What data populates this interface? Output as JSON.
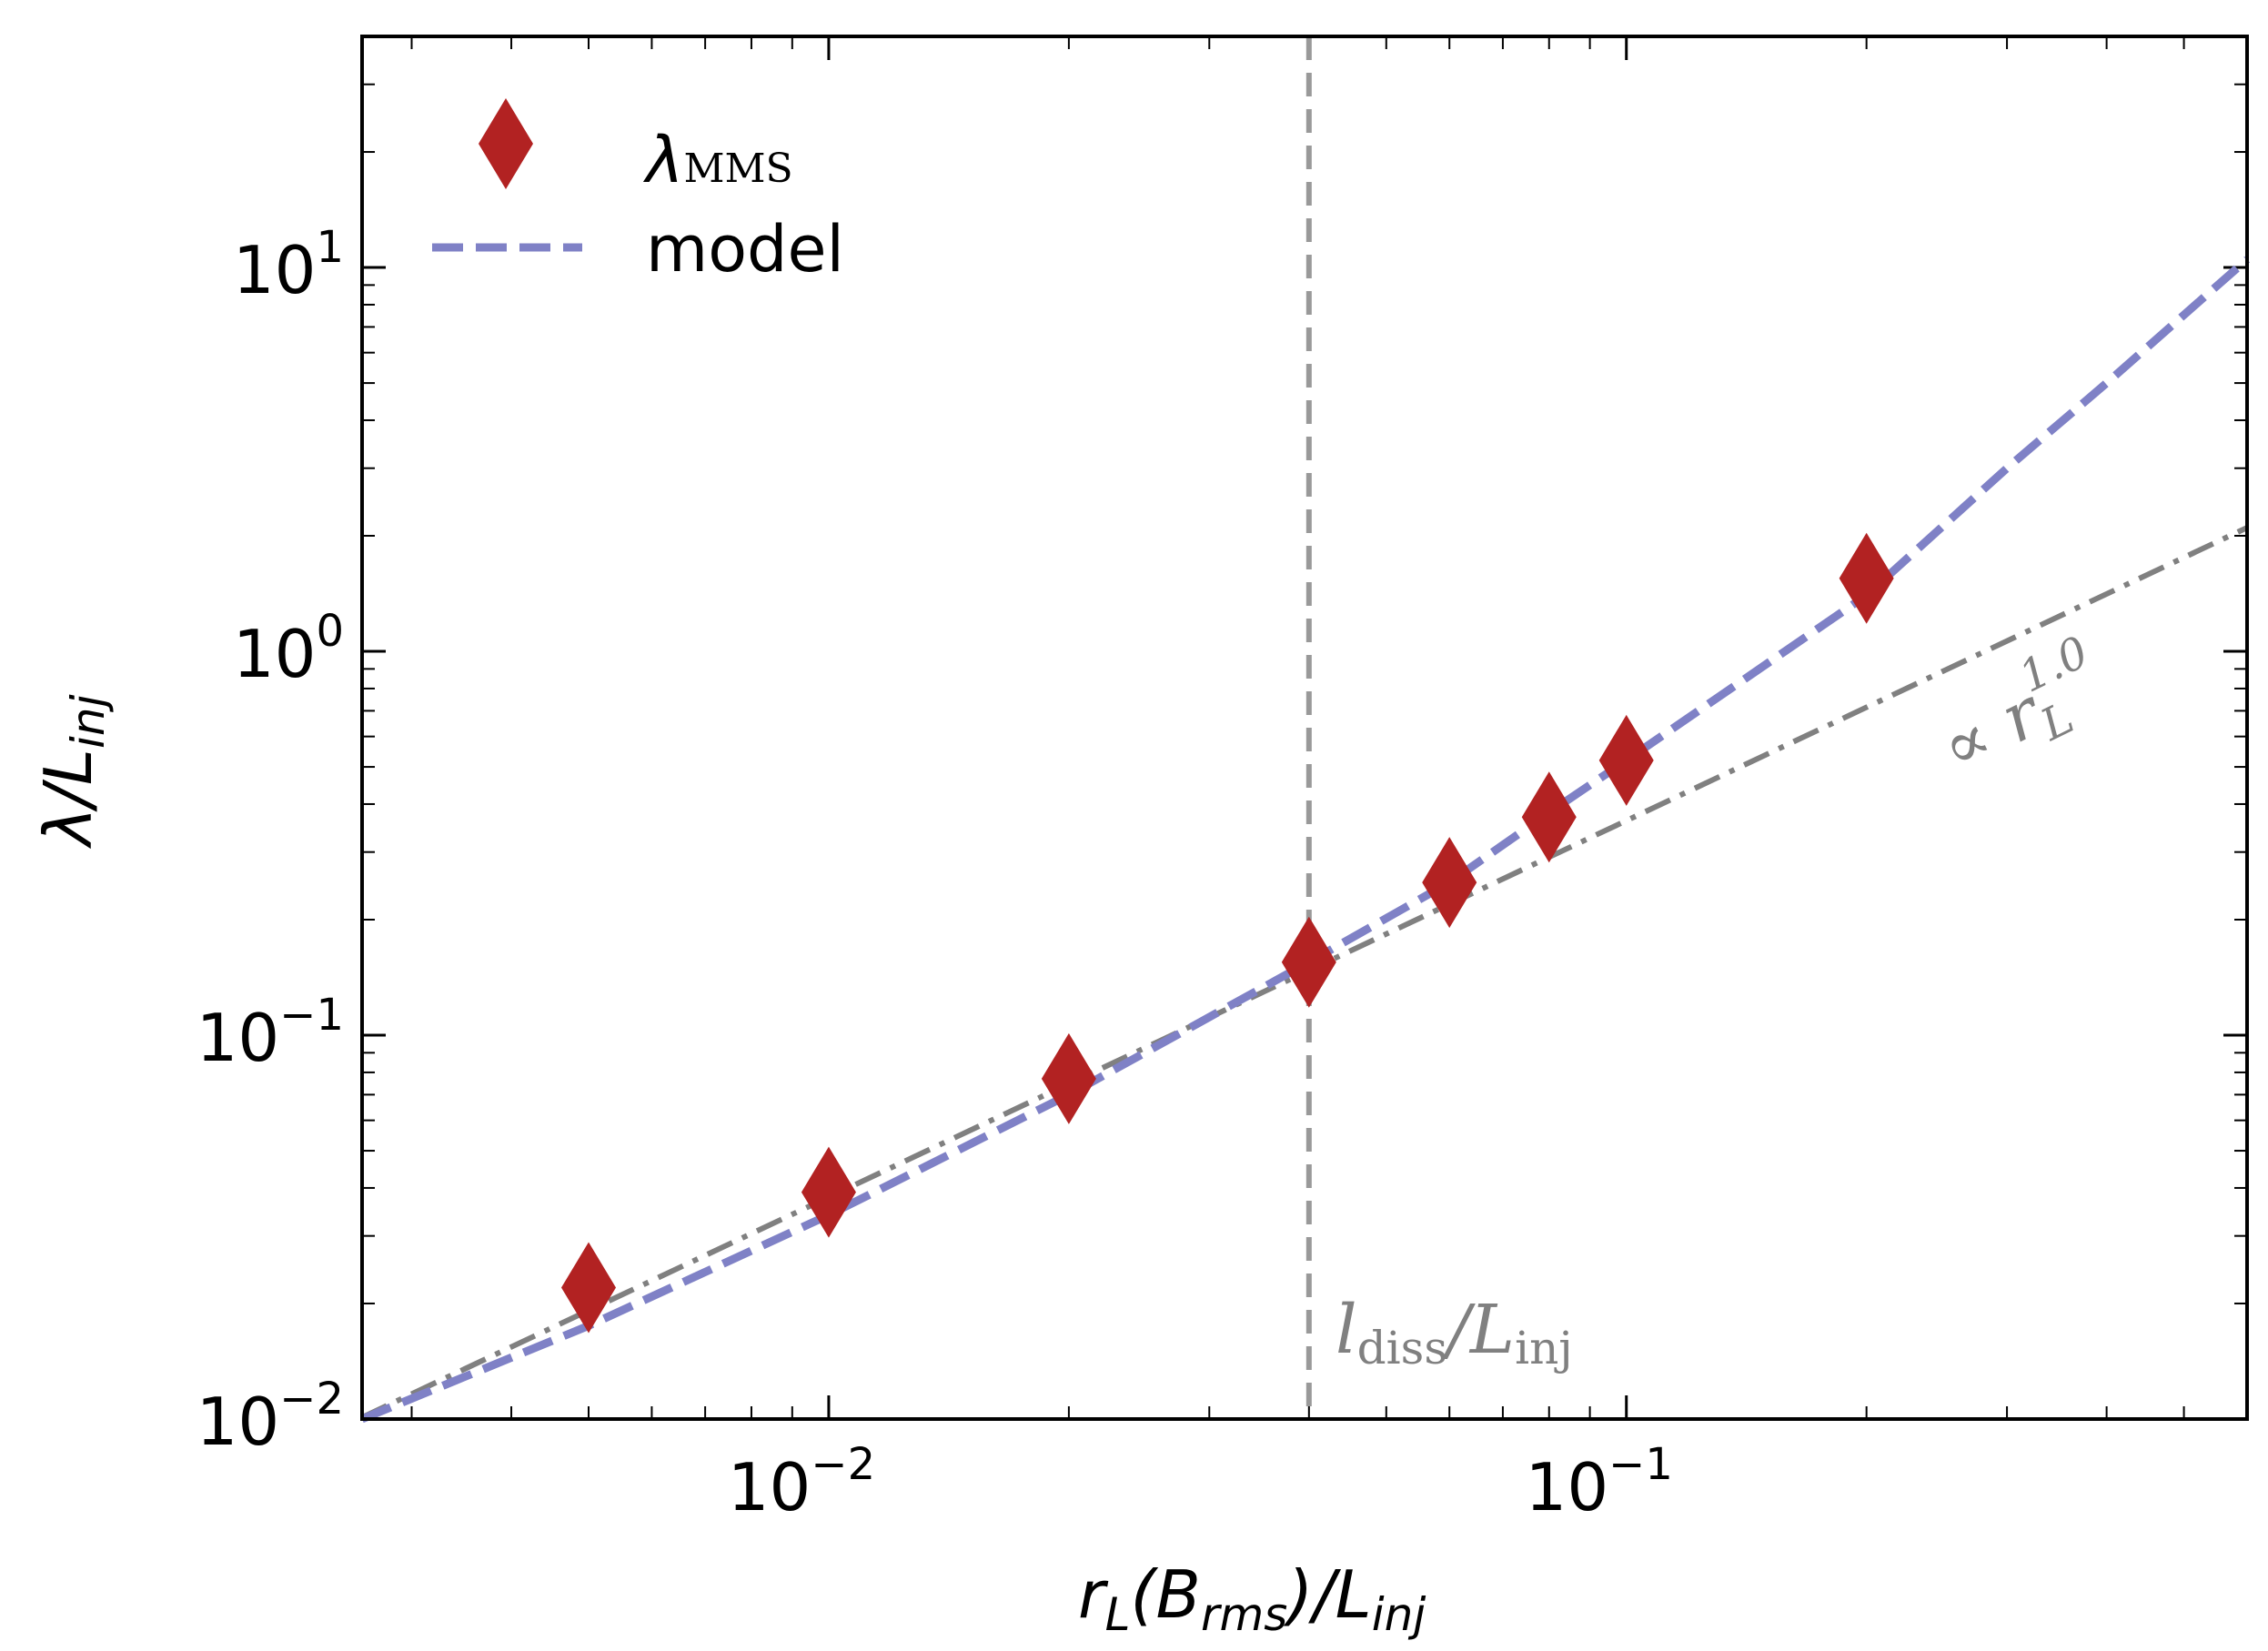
{
  "chart_data": {
    "type": "scatter",
    "title": "",
    "xlabel": "r_L(B_rms)/L_inj",
    "ylabel": "λ/L_inj",
    "xscale": "log",
    "yscale": "log",
    "xlim": [
      0.0026,
      0.6
    ],
    "ylim": [
      0.01,
      40
    ],
    "xticks": [
      {
        "base": "10",
        "exp": "−2",
        "value": 0.01
      },
      {
        "base": "10",
        "exp": "−1",
        "value": 0.1
      }
    ],
    "yticks": [
      {
        "base": "10",
        "exp": "−2",
        "value": 0.01
      },
      {
        "base": "10",
        "exp": "−1",
        "value": 0.1
      },
      {
        "base": "10",
        "exp": "0",
        "value": 1
      },
      {
        "base": "10",
        "exp": "1",
        "value": 10
      }
    ],
    "series": [
      {
        "name": "λ_MMS",
        "kind": "scatter",
        "marker": "diamond",
        "color": "#b22222",
        "x": [
          0.005,
          0.01,
          0.02,
          0.04,
          0.06,
          0.08,
          0.1,
          0.2
        ],
        "y": [
          0.022,
          0.039,
          0.077,
          0.155,
          0.25,
          0.37,
          0.52,
          1.55
        ]
      },
      {
        "name": "model",
        "kind": "line",
        "style": "dashed",
        "color": "#7f81c6",
        "x": [
          0.0026,
          0.005,
          0.01,
          0.02,
          0.04,
          0.06,
          0.08,
          0.1,
          0.2,
          0.3,
          0.4,
          0.6
        ],
        "y": [
          0.01,
          0.0175,
          0.034,
          0.07,
          0.155,
          0.25,
          0.38,
          0.52,
          1.4,
          3.0,
          5.0,
          10.5
        ]
      },
      {
        "name": "∝ r_L^1.0",
        "kind": "line",
        "style": "dashdot",
        "color": "#808080",
        "x": [
          0.0026,
          0.6
        ],
        "y": [
          0.0101,
          2.1
        ]
      }
    ],
    "vline": {
      "x": 0.04,
      "label": "l_diss/L_inj",
      "color": "#999999",
      "style": "dashed"
    },
    "annotation": {
      "text": "∝ r_L^1.0",
      "color": "#808080"
    },
    "legend": {
      "position": "top-left",
      "entries": [
        {
          "sym": "λ",
          "sub": "MMS"
        },
        {
          "text": "model"
        }
      ]
    }
  },
  "labels": {
    "x_axis": {
      "r": "r",
      "r_sub": "L",
      "B": "(B",
      "B_sub": "rms",
      "slash": ")/L",
      "L_sub": "inj"
    },
    "y_axis": {
      "lam": "λ/L",
      "L_sub": "inj"
    },
    "vline_label": {
      "l": "l",
      "l_sub": "diss",
      "slash": "/L",
      "L_sub": "inj"
    },
    "prop_label": {
      "prop": "∝ r",
      "sub": "L",
      "sup": "1.0"
    }
  }
}
